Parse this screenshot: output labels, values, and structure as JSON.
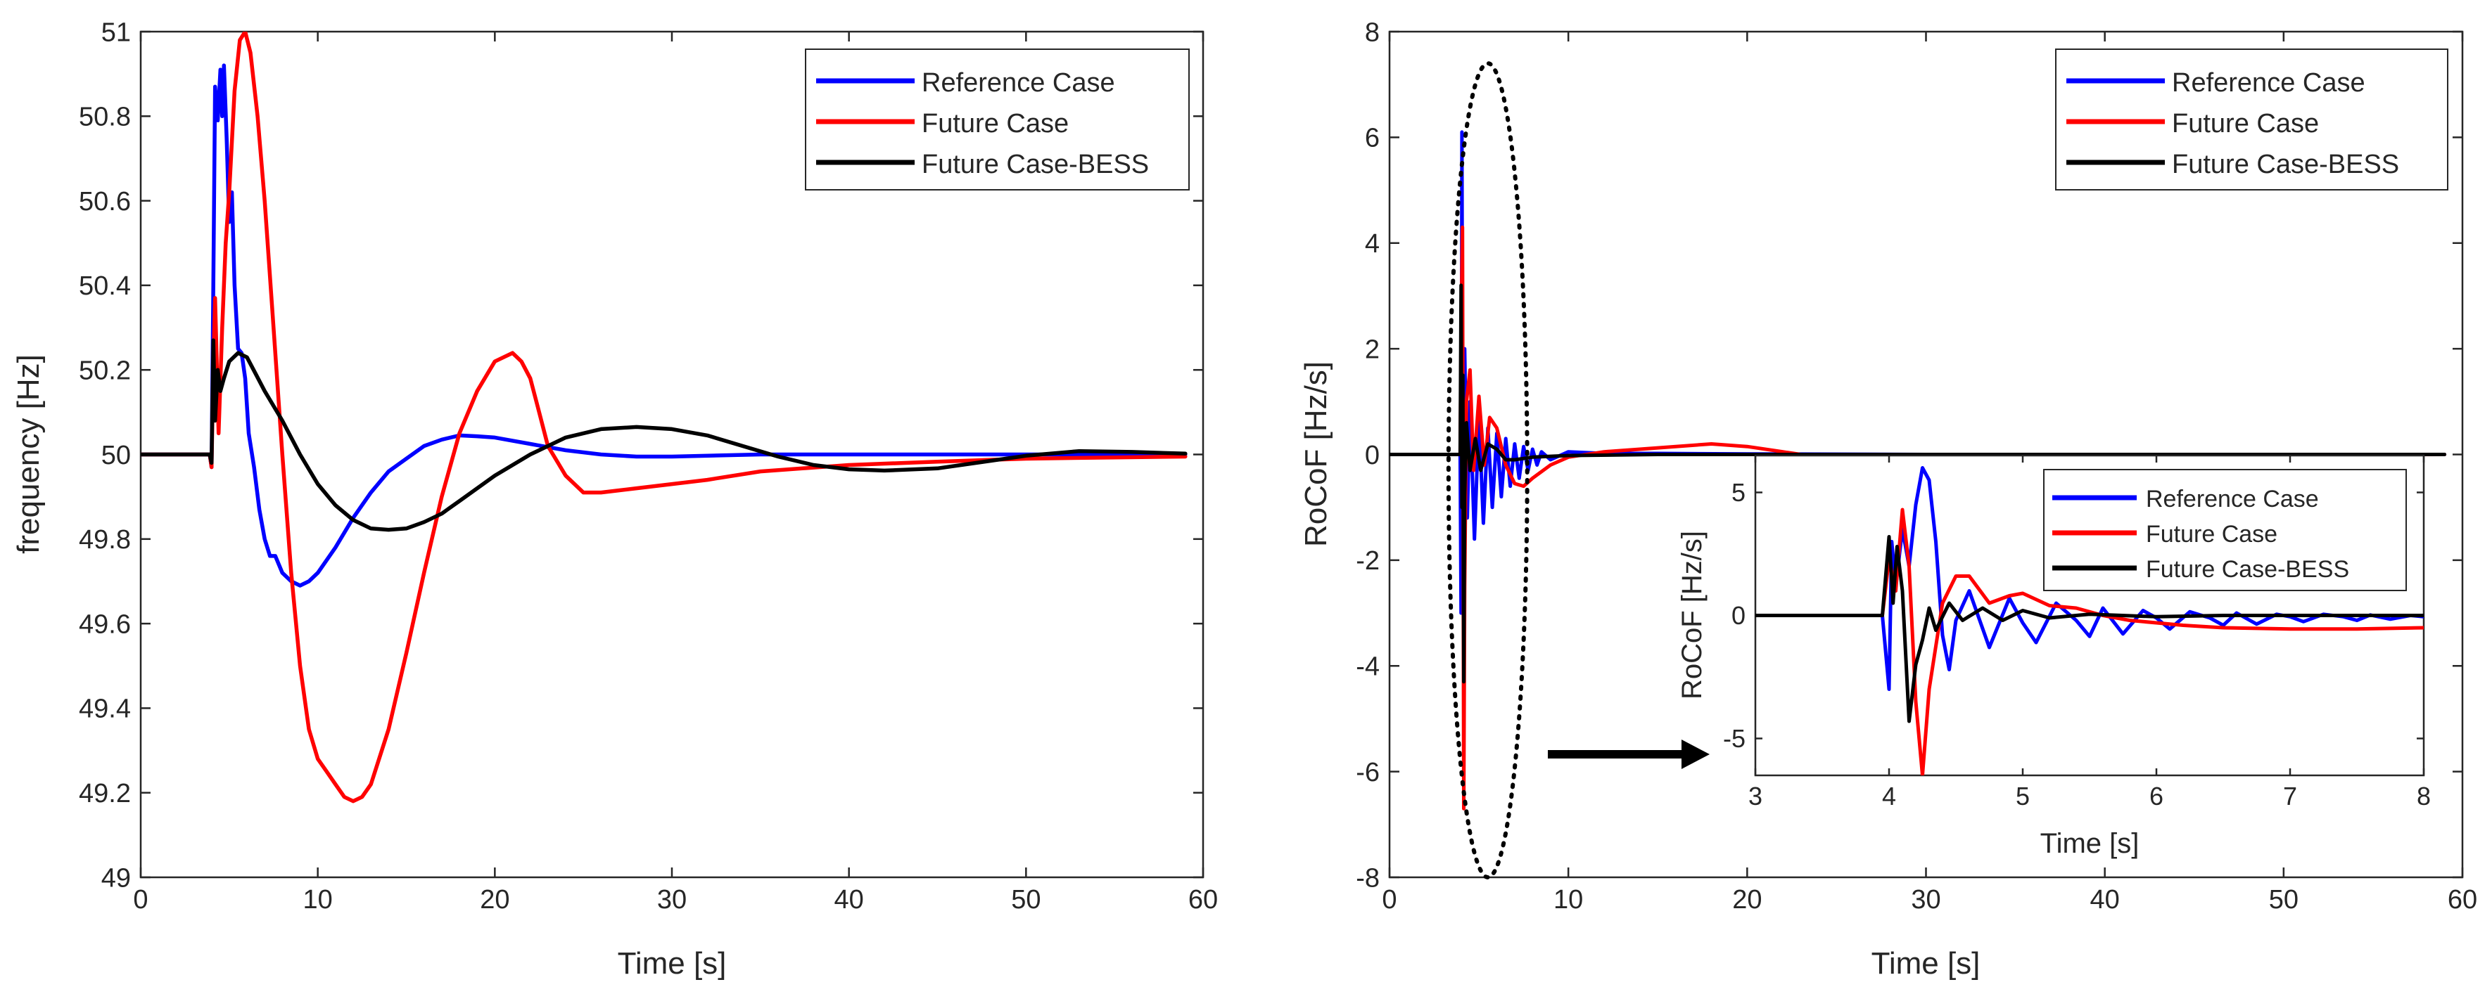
{
  "chart_data": [
    {
      "type": "line",
      "title": "",
      "xlabel": "Time [s]",
      "ylabel": "frequency [Hz]",
      "xlim": [
        0,
        60
      ],
      "ylim": [
        49,
        51
      ],
      "xticks": [
        0,
        10,
        20,
        30,
        40,
        50,
        60
      ],
      "xtick_labels": [
        "0",
        "10",
        "20",
        "30",
        "40",
        "50",
        "60"
      ],
      "yticks": [
        49,
        49.2,
        49.4,
        49.6,
        49.8,
        50,
        50.2,
        50.4,
        50.6,
        50.8,
        51
      ],
      "ytick_labels": [
        "49",
        "49.2",
        "49.4",
        "49.6",
        "49.8",
        "50",
        "50.2",
        "50.4",
        "50.6",
        "50.8",
        "51"
      ],
      "grid": false,
      "legend_position": "top-right",
      "series": [
        {
          "name": "Reference Case",
          "color": "#0000ff",
          "x": [
            0,
            3.9,
            4.0,
            4.1,
            4.2,
            4.35,
            4.5,
            4.6,
            4.7,
            4.85,
            5.0,
            5.15,
            5.3,
            5.5,
            5.7,
            5.9,
            6.1,
            6.4,
            6.7,
            7.0,
            7.3,
            7.6,
            8.0,
            8.5,
            9.0,
            9.5,
            10.0,
            11.0,
            12.0,
            13.0,
            14.0,
            15.0,
            16.0,
            17.0,
            18.0,
            19.0,
            20.0,
            22.0,
            24.0,
            26.0,
            28.0,
            30.0,
            35.0,
            40.0,
            45.0,
            50.0,
            55.0,
            59.0
          ],
          "values": [
            50.0,
            50.0,
            49.97,
            50.4,
            50.87,
            50.79,
            50.91,
            50.8,
            50.92,
            50.75,
            50.55,
            50.62,
            50.4,
            50.25,
            50.24,
            50.18,
            50.05,
            49.97,
            49.87,
            49.8,
            49.76,
            49.76,
            49.72,
            49.7,
            49.69,
            49.7,
            49.72,
            49.78,
            49.85,
            49.91,
            49.96,
            49.99,
            50.02,
            50.035,
            50.045,
            50.043,
            50.04,
            50.025,
            50.01,
            50.0,
            49.995,
            49.995,
            50.0,
            50.0,
            50.0,
            50.0,
            50.0,
            50.0
          ]
        },
        {
          "name": "Future Case",
          "color": "#ff0000",
          "x": [
            0,
            3.9,
            4.0,
            4.1,
            4.2,
            4.4,
            4.6,
            4.8,
            5.0,
            5.3,
            5.6,
            5.9,
            6.2,
            6.6,
            7.0,
            7.5,
            8.0,
            8.5,
            9.0,
            9.5,
            10.0,
            10.5,
            11.0,
            11.5,
            12.0,
            12.5,
            13.0,
            14.0,
            15.0,
            16.0,
            17.0,
            18.0,
            19.0,
            20.0,
            21.0,
            21.5,
            22.0,
            22.5,
            23.0,
            24.0,
            25.0,
            26.0,
            27.0,
            28.0,
            29.0,
            30.0,
            32.0,
            35.0,
            40.0,
            45.0,
            50.0,
            55.0,
            59.0
          ],
          "values": [
            50.0,
            50.0,
            49.97,
            50.2,
            50.37,
            50.05,
            50.3,
            50.5,
            50.62,
            50.86,
            50.98,
            51.0,
            50.95,
            50.8,
            50.6,
            50.3,
            50.0,
            49.72,
            49.5,
            49.35,
            49.28,
            49.25,
            49.22,
            49.19,
            49.18,
            49.19,
            49.22,
            49.35,
            49.53,
            49.72,
            49.9,
            50.05,
            50.15,
            50.22,
            50.24,
            50.22,
            50.18,
            50.1,
            50.02,
            49.95,
            49.91,
            49.91,
            49.915,
            49.92,
            49.925,
            49.93,
            49.94,
            49.96,
            49.975,
            49.983,
            49.99,
            49.993,
            49.995
          ]
        },
        {
          "name": "Future Case-BESS",
          "color": "#000000",
          "x": [
            0,
            3.9,
            4.0,
            4.1,
            4.2,
            4.35,
            4.5,
            4.7,
            5.0,
            5.5,
            6.0,
            6.5,
            7.0,
            8.0,
            9.0,
            10.0,
            11.0,
            12.0,
            13.0,
            14.0,
            15.0,
            16.0,
            17.0,
            18.0,
            20.0,
            22.0,
            24.0,
            26.0,
            28.0,
            30.0,
            32.0,
            34.0,
            36.0,
            38.0,
            40.0,
            42.0,
            45.0,
            48.0,
            50.0,
            53.0,
            56.0,
            59.0
          ],
          "values": [
            50.0,
            50.0,
            49.98,
            50.27,
            50.08,
            50.2,
            50.15,
            50.18,
            50.22,
            50.24,
            50.23,
            50.19,
            50.15,
            50.08,
            50.0,
            49.93,
            49.88,
            49.845,
            49.825,
            49.822,
            49.825,
            49.84,
            49.86,
            49.89,
            49.95,
            50.0,
            50.04,
            50.06,
            50.065,
            50.06,
            50.045,
            50.02,
            49.995,
            49.975,
            49.965,
            49.962,
            49.967,
            49.985,
            49.997,
            50.008,
            50.006,
            50.002
          ]
        }
      ]
    },
    {
      "type": "line",
      "title": "",
      "xlabel": "Time [s]",
      "ylabel": "RoCoF [Hz/s]",
      "xlim": [
        0,
        60
      ],
      "ylim": [
        -8,
        8
      ],
      "xticks": [
        0,
        10,
        20,
        30,
        40,
        50,
        60
      ],
      "xtick_labels": [
        "0",
        "10",
        "20",
        "30",
        "40",
        "50",
        "60"
      ],
      "yticks": [
        -8,
        -6,
        -4,
        -2,
        0,
        2,
        4,
        6,
        8
      ],
      "ytick_labels": [
        "-8",
        "-6",
        "-4",
        "-2",
        "0",
        "2",
        "4",
        "6",
        "8"
      ],
      "grid": false,
      "legend_position": "top-right",
      "highlight_ellipse": {
        "cx": 5.5,
        "cy": -0.3,
        "rx": 2.2,
        "ry": 7.7
      },
      "series": [
        {
          "name": "Reference Case",
          "color": "#0000ff",
          "x": [
            0,
            3.95,
            4.0,
            4.05,
            4.1,
            4.2,
            4.35,
            4.5,
            4.75,
            5.0,
            5.25,
            5.5,
            5.75,
            6.0,
            6.25,
            6.5,
            6.75,
            7.0,
            7.25,
            7.5,
            7.75,
            8.0,
            8.25,
            8.5,
            9.0,
            10.0,
            12.0,
            15.0,
            20.0,
            30.0,
            40.0,
            50.0,
            59.0
          ],
          "values": [
            0,
            0,
            -3.0,
            6.1,
            -1.5,
            2.0,
            -1.2,
            1.0,
            -1.6,
            0.7,
            -1.3,
            0.5,
            -1.0,
            0.4,
            -0.8,
            0.3,
            -0.6,
            0.2,
            -0.45,
            0.15,
            -0.3,
            0.1,
            -0.2,
            0.05,
            -0.1,
            0.05,
            0.02,
            0.02,
            0.01,
            0.0,
            0.0,
            0.0,
            0.0
          ]
        },
        {
          "name": "Future Case",
          "color": "#ff0000",
          "x": [
            0,
            3.95,
            4.0,
            4.08,
            4.15,
            4.2,
            4.3,
            4.5,
            4.7,
            5.0,
            5.3,
            5.6,
            6.0,
            6.5,
            7.0,
            7.5,
            8.0,
            9.0,
            10.0,
            12.0,
            14.0,
            16.0,
            18.0,
            20.0,
            22.0,
            24.0,
            26.0,
            28.0,
            30.0,
            35.0,
            40.0,
            50.0,
            59.0
          ],
          "values": [
            0,
            0,
            2.3,
            4.3,
            -6.7,
            -2.5,
            1.0,
            1.6,
            -0.3,
            1.1,
            -0.2,
            0.7,
            0.5,
            -0.2,
            -0.55,
            -0.6,
            -0.45,
            -0.2,
            -0.05,
            0.05,
            0.1,
            0.15,
            0.2,
            0.15,
            0.05,
            -0.05,
            -0.08,
            -0.1,
            -0.08,
            -0.05,
            -0.03,
            -0.01,
            0.0
          ]
        },
        {
          "name": "Future Case-BESS",
          "color": "#000000",
          "x": [
            0,
            3.95,
            4.0,
            4.05,
            4.1,
            4.15,
            4.2,
            4.3,
            4.5,
            4.8,
            5.1,
            5.5,
            6.0,
            6.5,
            7.0,
            8.0,
            10.0,
            15.0,
            20.0,
            30.0,
            40.0,
            50.0,
            59.0
          ],
          "values": [
            0,
            0,
            3.2,
            -1.0,
            1.5,
            -4.3,
            -0.8,
            0.6,
            -0.3,
            0.3,
            -0.3,
            0.2,
            0.1,
            -0.1,
            -0.1,
            -0.05,
            -0.02,
            0.0,
            0.0,
            0.0,
            0.0,
            0.0,
            0.0
          ]
        }
      ]
    },
    {
      "type": "line",
      "title": "",
      "xlabel": "Time [s]",
      "ylabel": "RoCoF [Hz/s]",
      "xlim": [
        3,
        8
      ],
      "ylim": [
        -6.5,
        6.5
      ],
      "xticks": [
        3,
        4,
        5,
        6,
        7,
        8
      ],
      "xtick_labels": [
        "3",
        "4",
        "5",
        "6",
        "7",
        "8"
      ],
      "yticks": [
        -5,
        0,
        5
      ],
      "ytick_labels": [
        "-5",
        "0",
        "5"
      ],
      "grid": false,
      "legend_position": "top-right",
      "inset_of": "RoCoF main plot",
      "series": [
        {
          "name": "Reference Case",
          "color": "#0000ff",
          "x": [
            3,
            3.95,
            4.0,
            4.02,
            4.05,
            4.1,
            4.15,
            4.2,
            4.25,
            4.3,
            4.35,
            4.4,
            4.45,
            4.5,
            4.6,
            4.75,
            4.9,
            5.0,
            5.1,
            5.25,
            5.4,
            5.5,
            5.6,
            5.75,
            5.9,
            6.0,
            6.1,
            6.25,
            6.4,
            6.5,
            6.6,
            6.75,
            6.9,
            7.0,
            7.1,
            7.25,
            7.4,
            7.5,
            7.6,
            7.75,
            7.9,
            8.0
          ],
          "values": [
            0,
            0,
            -3.0,
            3.0,
            1.2,
            3.5,
            2.0,
            4.5,
            6.0,
            5.5,
            3.0,
            -0.8,
            -2.2,
            -0.2,
            1.0,
            -1.3,
            0.7,
            -0.3,
            -1.1,
            0.5,
            -0.2,
            -0.85,
            0.3,
            -0.75,
            0.2,
            -0.1,
            -0.55,
            0.15,
            -0.1,
            -0.4,
            0.1,
            -0.35,
            0.05,
            -0.05,
            -0.25,
            0.05,
            -0.05,
            -0.2,
            0.02,
            -0.15,
            0.0,
            -0.05
          ]
        },
        {
          "name": "Future Case",
          "color": "#ff0000",
          "x": [
            3,
            3.95,
            4.0,
            4.05,
            4.1,
            4.15,
            4.2,
            4.25,
            4.3,
            4.4,
            4.5,
            4.6,
            4.75,
            4.9,
            5.0,
            5.2,
            5.4,
            5.6,
            5.8,
            6.0,
            6.2,
            6.5,
            7.0,
            7.5,
            8.0
          ],
          "values": [
            0,
            0,
            2.3,
            1.0,
            4.3,
            2.0,
            -3.5,
            -6.5,
            -3.0,
            0.5,
            1.6,
            1.6,
            0.5,
            0.8,
            0.9,
            0.4,
            0.3,
            0.0,
            -0.2,
            -0.3,
            -0.4,
            -0.5,
            -0.55,
            -0.55,
            -0.5
          ]
        },
        {
          "name": "Future Case-BESS",
          "color": "#000000",
          "x": [
            3,
            3.95,
            4.0,
            4.03,
            4.06,
            4.1,
            4.15,
            4.2,
            4.25,
            4.3,
            4.35,
            4.45,
            4.55,
            4.7,
            4.85,
            5.0,
            5.2,
            5.5,
            6.0,
            6.5,
            7.0,
            7.5,
            8.0
          ],
          "values": [
            0,
            0,
            3.2,
            0.5,
            2.8,
            1.0,
            -4.3,
            -2.0,
            -1.0,
            0.3,
            -0.6,
            0.5,
            -0.2,
            0.3,
            -0.2,
            0.2,
            -0.1,
            0.05,
            -0.05,
            0.0,
            0.0,
            0.0,
            0.0
          ]
        }
      ]
    }
  ]
}
